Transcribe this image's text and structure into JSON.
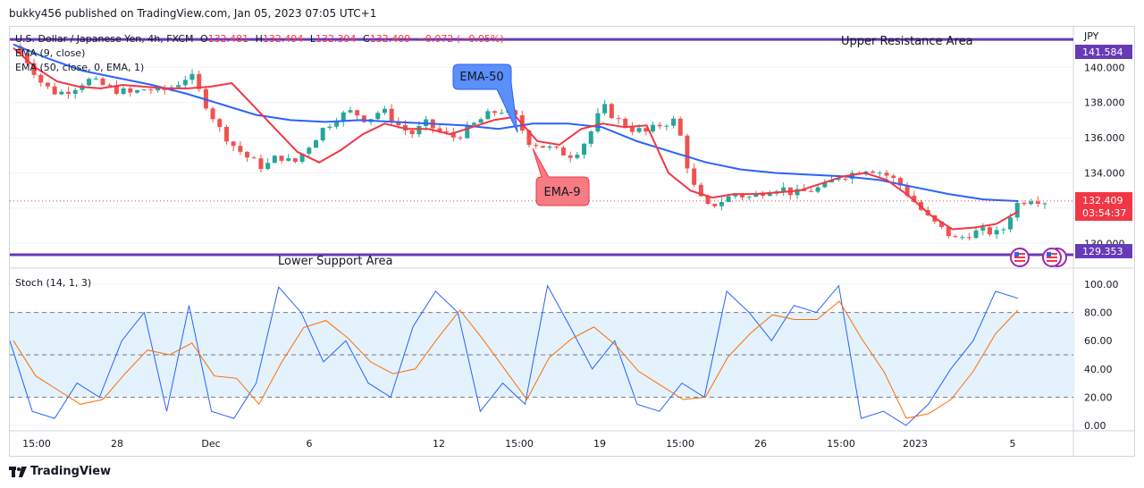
{
  "header": {
    "text": "bukky456 published on TradingView.com, Jan 05, 2023 07:05 UTC+1"
  },
  "legend": {
    "symbol": "U.S. Dollar / Japanese Yen, 4h, FXCM",
    "o_label": "O",
    "o_val": "132.481",
    "h_label": "H",
    "h_val": "132.494",
    "l_label": "L",
    "l_val": "132.394",
    "c_label": "C",
    "c_val": "132.409",
    "change": "−0.072 (−0.05%)",
    "ema_fast": "EMA (9, close)",
    "ema_slow": "EMA (50, close, 0, EMA, 1)"
  },
  "labels": {
    "upper": "Upper Resistance Area",
    "lower": "Lower Support Area",
    "ema50": "EMA-50",
    "ema9": "EMA-9",
    "currency": "JPY",
    "stoch": "Stoch (14, 1, 3)"
  },
  "badges": {
    "resistance": "141.584",
    "price": "132.409",
    "countdown": "03:54:37",
    "support": "129.353"
  },
  "price_axis": [
    "140.000",
    "138.000",
    "136.000",
    "134.000",
    "130.000"
  ],
  "stoch_axis": [
    "100.00",
    "80.00",
    "60.00",
    "40.00",
    "20.00",
    "0.00"
  ],
  "time_axis": [
    "15:00",
    "28",
    "Dec",
    "6",
    "12",
    "15:00",
    "19",
    "15:00",
    "26",
    "15:00",
    "2023",
    "5"
  ],
  "footer": {
    "brand": "TradingView"
  },
  "colors": {
    "up": "#26a69a",
    "down": "#ef5350",
    "ema9": "#f23645",
    "ema50": "#2962ff",
    "level": "#673ab7",
    "stoch_k": "#2962ff",
    "stoch_d": "#ff6d00",
    "band": "#e3f2fd"
  },
  "chart_data": {
    "type": "candlestick",
    "price_axis_range": [
      129,
      142.3
    ],
    "levels": {
      "resistance": 141.584,
      "support": 129.353,
      "last": 132.409
    },
    "ohlc_close_path": [
      141.2,
      140.3,
      139.0,
      138.5,
      138.8,
      139.3,
      139.0,
      138.7,
      138.5,
      138.8,
      138.6,
      139.0,
      139.6,
      138.0,
      136.5,
      135.5,
      134.8,
      134.3,
      135.0,
      134.5,
      135.5,
      136.5,
      137.2,
      137.5,
      137.0,
      137.6,
      136.8,
      136.2,
      136.8,
      136.3,
      136.0,
      136.6,
      137.2,
      137.6,
      137.2,
      135.8,
      135.5,
      135.2,
      135.0,
      136.0,
      137.8,
      137.0,
      136.5,
      136.3,
      136.8,
      137.0,
      133.5,
      132.0,
      132.4,
      132.8,
      132.6,
      133.0,
      133.2,
      132.8,
      133.0,
      133.2,
      133.8,
      134.0,
      134.3,
      134.0,
      133.5,
      132.5,
      131.5,
      130.8,
      130.2,
      130.6,
      130.7,
      130.5,
      132.2,
      132.6,
      132.4
    ],
    "ema9_path": [
      141.1,
      140.0,
      139.2,
      138.9,
      138.8,
      139.0,
      138.9,
      138.8,
      138.8,
      138.9,
      139.1,
      137.8,
      136.5,
      135.2,
      134.6,
      135.3,
      136.2,
      136.8,
      136.5,
      136.5,
      136.2,
      136.6,
      137.0,
      137.2,
      135.8,
      135.6,
      136.5,
      136.8,
      136.6,
      136.7,
      134.0,
      133.0,
      132.6,
      132.8,
      132.8,
      132.9,
      133.0,
      133.4,
      133.8,
      134.0,
      133.6,
      132.7,
      131.6,
      130.8,
      130.9,
      131.1,
      131.8
    ],
    "ema50_path": [
      141.3,
      140.5,
      139.8,
      139.4,
      139.0,
      138.5,
      137.9,
      137.3,
      137.0,
      136.9,
      137.0,
      136.9,
      136.8,
      136.7,
      136.5,
      136.8,
      136.8,
      136.6,
      135.8,
      135.2,
      134.6,
      134.2,
      134.0,
      133.9,
      133.8,
      133.6,
      133.2,
      132.8,
      132.5,
      132.4
    ],
    "stoch_k_sample": [
      60,
      10,
      5,
      30,
      20,
      60,
      80,
      10,
      85,
      10,
      5,
      30,
      98,
      80,
      45,
      60,
      30,
      20,
      70,
      95,
      80,
      10,
      30,
      15,
      99,
      70,
      40,
      60,
      15,
      10,
      30,
      20,
      95,
      80,
      60,
      85,
      80,
      99,
      5,
      10,
      0,
      15,
      40,
      60,
      95,
      90
    ],
    "stoch_range": [
      0,
      100
    ],
    "stoch_bands": [
      20,
      50,
      80
    ]
  }
}
